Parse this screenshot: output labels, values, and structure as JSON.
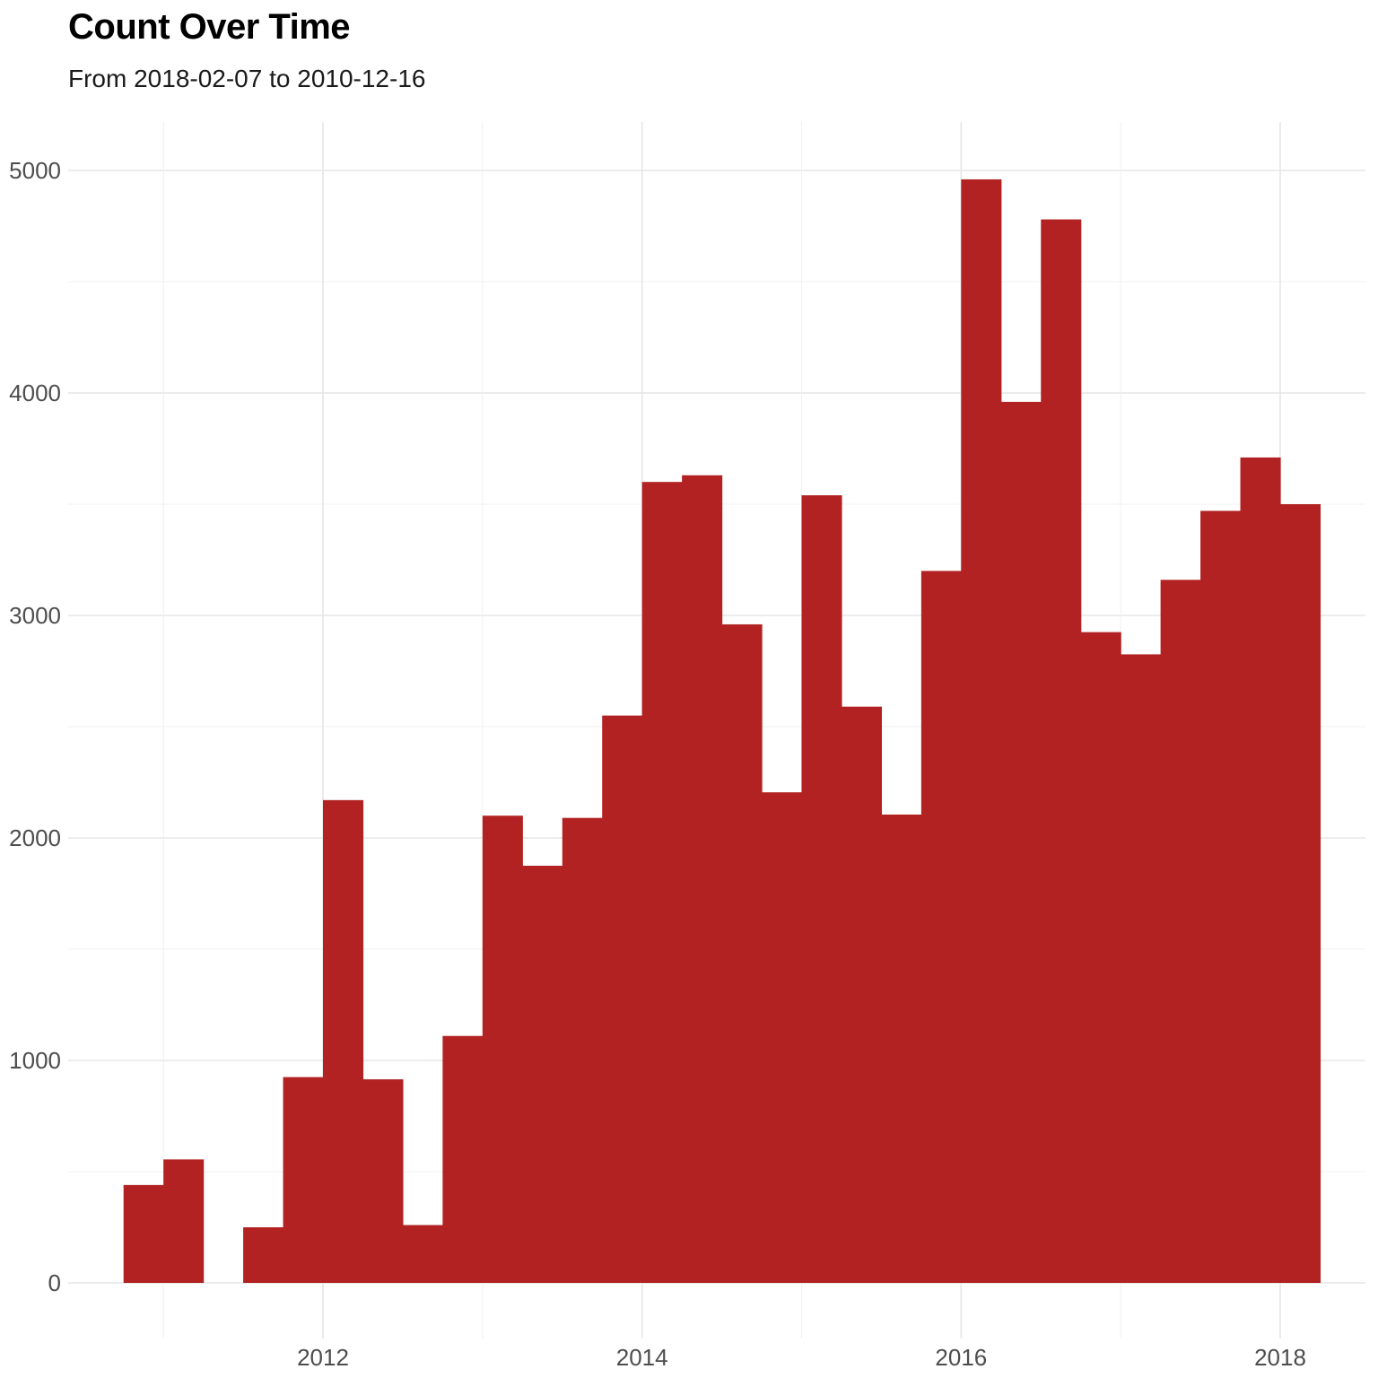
{
  "chart_data": {
    "type": "bar",
    "title": "Count Over Time",
    "subtitle": "From 2018-02-07 to 2010-12-16",
    "xlabel": "",
    "ylabel": "",
    "bar_color": "#B22222",
    "grid": true,
    "legend": "none",
    "ylim": [
      0,
      5200
    ],
    "y_ticks": [
      0,
      1000,
      2000,
      3000,
      4000,
      5000
    ],
    "x_ticks": [
      "2012",
      "2014",
      "2016",
      "2018"
    ],
    "x_tick_years": [
      2012,
      2014,
      2016,
      2018
    ],
    "xlim_years": [
      2010.6,
      2018.5
    ],
    "bins": [
      {
        "start": 2010.75,
        "end": 2011.0,
        "count": 440
      },
      {
        "start": 2011.0,
        "end": 2011.25,
        "count": 555
      },
      {
        "start": 2011.25,
        "end": 2011.5,
        "count": 0
      },
      {
        "start": 2011.5,
        "end": 2011.75,
        "count": 250
      },
      {
        "start": 2011.75,
        "end": 2012.0,
        "count": 925
      },
      {
        "start": 2012.0,
        "end": 2012.25,
        "count": 2170
      },
      {
        "start": 2012.25,
        "end": 2012.5,
        "count": 915
      },
      {
        "start": 2012.5,
        "end": 2012.75,
        "count": 260
      },
      {
        "start": 2012.75,
        "end": 2013.0,
        "count": 1110
      },
      {
        "start": 2013.0,
        "end": 2013.25,
        "count": 2100
      },
      {
        "start": 2013.25,
        "end": 2013.5,
        "count": 1875
      },
      {
        "start": 2013.5,
        "end": 2013.75,
        "count": 2090
      },
      {
        "start": 2013.75,
        "end": 2014.0,
        "count": 2550
      },
      {
        "start": 2014.0,
        "end": 2014.25,
        "count": 3600
      },
      {
        "start": 2014.25,
        "end": 2014.5,
        "count": 3630
      },
      {
        "start": 2014.5,
        "end": 2014.75,
        "count": 2960
      },
      {
        "start": 2014.75,
        "end": 2015.0,
        "count": 2205
      },
      {
        "start": 2015.0,
        "end": 2015.25,
        "count": 3540
      },
      {
        "start": 2015.25,
        "end": 2015.5,
        "count": 2590
      },
      {
        "start": 2015.5,
        "end": 2015.75,
        "count": 2105
      },
      {
        "start": 2015.75,
        "end": 2016.0,
        "count": 3200
      },
      {
        "start": 2016.0,
        "end": 2016.25,
        "count": 4960
      },
      {
        "start": 2016.25,
        "end": 2016.5,
        "count": 3960
      },
      {
        "start": 2016.5,
        "end": 2016.75,
        "count": 4780
      },
      {
        "start": 2016.75,
        "end": 2017.0,
        "count": 2925
      },
      {
        "start": 2017.0,
        "end": 2017.25,
        "count": 2825
      },
      {
        "start": 2017.25,
        "end": 2017.5,
        "count": 3160
      },
      {
        "start": 2017.5,
        "end": 2017.75,
        "count": 3470
      },
      {
        "start": 2017.75,
        "end": 2018.0,
        "count": 3710
      },
      {
        "start": 2018.0,
        "end": 2018.25,
        "count": 3500
      }
    ]
  }
}
